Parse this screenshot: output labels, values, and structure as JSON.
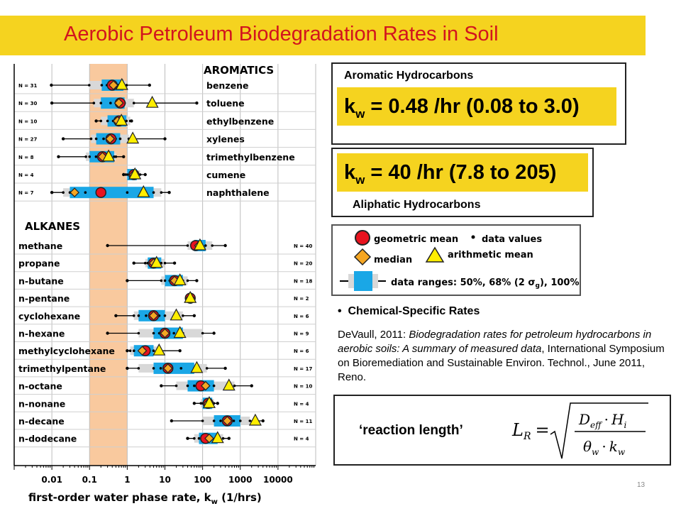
{
  "title": "Aerobic Petroleum Biodegradation Rates in Soil",
  "chart_data": {
    "type": "box",
    "x_scale": "log",
    "xlim": [
      0.001,
      100000
    ],
    "x_ticks": [
      "0.01",
      "0.1",
      "1",
      "10",
      "100",
      "1000",
      "10000"
    ],
    "x_tick_values": [
      0.01,
      0.1,
      1,
      10,
      100,
      1000,
      10000
    ],
    "xlabel": "first-order water phase rate, k",
    "xlabel_sub": "w",
    "xlabel_tail": " (1/hrs)",
    "highlight_band": [
      0.1,
      1
    ],
    "groups": [
      {
        "name": "AROMATICS",
        "items": [
          {
            "compound": "benzene",
            "n": "N = 31",
            "min": 0.0097,
            "p84": 0.96,
            "p16": 0.098,
            "p25": 0.21,
            "p75": 0.79,
            "max": 3.9,
            "geo": 0.4,
            "median": 0.43,
            "arith": 0.72
          },
          {
            "compound": "toluene",
            "n": "N = 30",
            "min": 0.01,
            "p16": 0.13,
            "p25": 0.2,
            "p75": 0.85,
            "p84": 1.5,
            "max": 70,
            "geo": 0.65,
            "median": 0.6,
            "arith": 4.6
          },
          {
            "compound": "ethylbenzene",
            "n": "N = 10",
            "min": 0.15,
            "p16": 0.2,
            "p25": 0.3,
            "p75": 0.95,
            "p84": 1.2,
            "max": 1.3,
            "geo": 0.6,
            "median": 0.55,
            "arith": 0.7
          },
          {
            "compound": "xylenes",
            "n": "N = 27",
            "min": 0.02,
            "p16": 0.11,
            "p25": 0.15,
            "p75": 0.65,
            "p84": 1.1,
            "max": 10,
            "geo": 0.37,
            "median": 0.35,
            "arith": 1.4
          },
          {
            "compound": "trimethylbenzene",
            "n": "N = 8",
            "min": 0.015,
            "p16": 0.08,
            "p25": 0.1,
            "p75": 0.45,
            "p84": 0.5,
            "max": 0.8,
            "geo": 0.22,
            "median": 0.22,
            "arith": 0.32
          },
          {
            "compound": "cumene",
            "n": "N = 4",
            "min": 0.8,
            "p16": 0.9,
            "p25": 1.0,
            "p75": 1.8,
            "p84": 2.2,
            "max": 3.0,
            "geo": 1.5,
            "median": 1.5,
            "arith": 1.6
          },
          {
            "compound": "naphthalene",
            "n": "N = 7",
            "min": 0.01,
            "p16": 0.02,
            "p25": 0.03,
            "p75": 5,
            "p84": 8,
            "max": 13,
            "geo": 0.2,
            "median": 0.04,
            "arith": 2.7
          }
        ]
      },
      {
        "name": "ALKANES",
        "items": [
          {
            "compound": "methane",
            "n": "N = 40",
            "min": 0.3,
            "p16": 40,
            "p25": 60,
            "p75": 120,
            "p84": 180,
            "max": 400,
            "geo": 65,
            "median": 80,
            "arith": 85
          },
          {
            "compound": "propane",
            "n": "N = 20",
            "min": 1.5,
            "p16": 3,
            "p25": 3.5,
            "p75": 8,
            "p84": 10,
            "max": 18,
            "geo": 5,
            "median": 5,
            "arith": 6
          },
          {
            "compound": "n-butane",
            "n": "N = 18",
            "min": 1.0,
            "p16": 8,
            "p25": 10,
            "p75": 30,
            "p84": 40,
            "max": 70,
            "geo": 18,
            "median": 18,
            "arith": 25
          },
          {
            "compound": "n-pentane",
            "n": "N = 2",
            "min": 45,
            "p16": 45,
            "p25": 45,
            "p75": 50,
            "p84": 50,
            "max": 50,
            "geo": 47,
            "median": 47,
            "arith": 47
          },
          {
            "compound": "cyclohexane",
            "n": "N = 6",
            "min": 0.5,
            "p16": 1.5,
            "p25": 2,
            "p75": 10,
            "p84": 30,
            "max": 60,
            "geo": 5,
            "median": 5,
            "arith": 20
          },
          {
            "compound": "n-hexane",
            "n": "N = 9",
            "min": 0.3,
            "p16": 2,
            "p25": 5,
            "p75": 30,
            "p84": 100,
            "max": 200,
            "geo": 10,
            "median": 10,
            "arith": 25
          },
          {
            "compound": "methylcyclohexane",
            "n": "N = 6",
            "min": 1.0,
            "p16": 1.2,
            "p25": 1.5,
            "p75": 5,
            "p84": 7,
            "max": 25,
            "geo": 3,
            "median": 2.5,
            "arith": 7
          },
          {
            "compound": "trimethylpentane",
            "n": "N = 17",
            "min": 1.0,
            "p16": 2,
            "p25": 5,
            "p75": 60,
            "p84": 130,
            "max": 400,
            "geo": 12,
            "median": 12,
            "arith": 70
          },
          {
            "compound": "n-octane",
            "n": "N = 10",
            "min": 8,
            "p16": 20,
            "p25": 40,
            "p75": 200,
            "p84": 700,
            "max": 2000,
            "geo": 90,
            "median": 120,
            "arith": 500
          },
          {
            "compound": "n-nonane",
            "n": "N = 4",
            "min": 60,
            "p16": 90,
            "p25": 100,
            "p75": 180,
            "p84": 200,
            "max": 250,
            "geo": 140,
            "median": 140,
            "arith": 150
          },
          {
            "compound": "n-decane",
            "n": "N = 11",
            "min": 15,
            "p16": 100,
            "p25": 200,
            "p75": 1000,
            "p84": 1800,
            "max": 4000,
            "geo": 450,
            "median": 450,
            "arith": 2500
          },
          {
            "compound": "n-dodecane",
            "n": "N = 4",
            "min": 40,
            "p16": 60,
            "p25": 80,
            "p75": 250,
            "p84": 350,
            "max": 500,
            "geo": 120,
            "median": 150,
            "arith": 250
          }
        ]
      }
    ]
  },
  "aromatic_box": {
    "label": "Aromatic Hydrocarbons",
    "kw_prefix": "k",
    "kw_sub": "w",
    "kw_value": " = 0.48 /hr (0.08 to 3.0)"
  },
  "aliphatic_box": {
    "label": "Aliphatic Hydrocarbons",
    "kw_prefix": "k",
    "kw_sub": "w",
    "kw_value": " = 40 /hr (7.8 to 205)"
  },
  "legend": {
    "geometric_mean": "geometric mean",
    "data_values": "data values",
    "median": "median",
    "arithmetic_mean": "arithmetic mean",
    "ranges_prefix": "data ranges: 50%, 68% (2 ",
    "ranges_symbol": "σ",
    "ranges_symbol_sub": "g",
    "ranges_suffix": "), 100%"
  },
  "bullet_heading": "Chemical-Specific Rates",
  "citation": {
    "author": "DeVaull, 2011: ",
    "title": "Biodegradation rates for petroleum hydrocarbons in aerobic soils: A summary of measured data",
    "rest": ", International Symposium on Bioremediation and Sustainable Environ. Technol., June 2011, Reno."
  },
  "reaction_length_label": "‘reaction length’",
  "formula": {
    "lhs": "L",
    "lhs_sub": "R",
    "num_a": "D",
    "num_a_sub": "eff",
    "num_b": "H",
    "num_b_sub": "i",
    "den_a": "θ",
    "den_a_sub": "w",
    "den_b": "k",
    "den_b_sub": "w",
    "dot": "·",
    "eq": "="
  },
  "page_number": "13",
  "colors": {
    "title_bar": "#f5d31f",
    "title_text": "#d2141e",
    "band": "#f9c99e",
    "iqr": "#1aa7e6",
    "range68": "#d8d8d8",
    "geo": "#e8131f",
    "median": "#f5a623",
    "arith": "#ffee00"
  }
}
